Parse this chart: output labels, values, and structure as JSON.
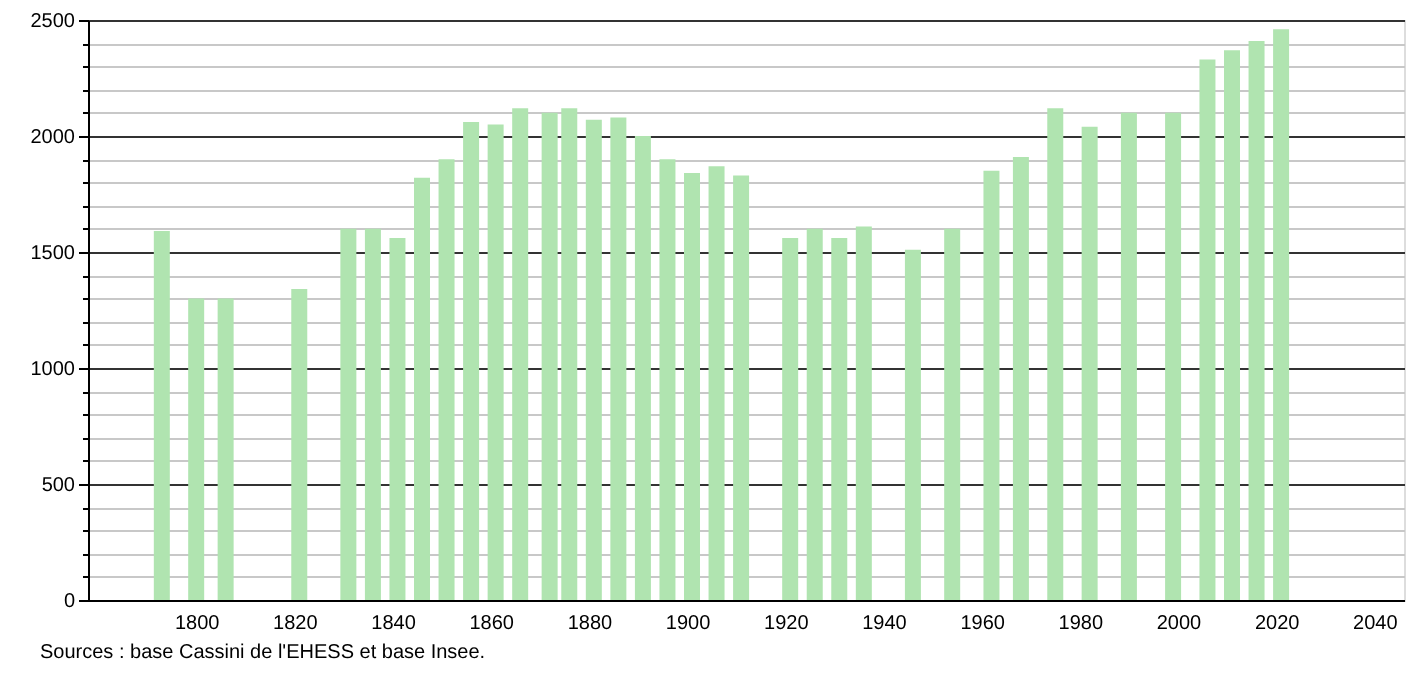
{
  "chart_data": {
    "type": "bar",
    "color": "#b0e4b0",
    "x": [
      1793,
      1800,
      1806,
      1821,
      1831,
      1836,
      1841,
      1846,
      1851,
      1856,
      1861,
      1866,
      1872,
      1876,
      1881,
      1886,
      1891,
      1896,
      1901,
      1906,
      1911,
      1921,
      1926,
      1931,
      1936,
      1946,
      1954,
      1962,
      1968,
      1975,
      1982,
      1990,
      1999,
      2006,
      2011,
      2016,
      2021
    ],
    "values": [
      1590,
      1300,
      1300,
      1340,
      1600,
      1600,
      1560,
      1820,
      1900,
      2060,
      2050,
      2120,
      2100,
      2120,
      2070,
      2080,
      2000,
      1900,
      1840,
      1870,
      1830,
      1560,
      1600,
      1560,
      1610,
      1510,
      1600,
      1850,
      1910,
      2120,
      2040,
      2100,
      2100,
      2330,
      2370,
      2410,
      2460
    ],
    "xlim": [
      1780,
      2044
    ],
    "xticks": [
      1800,
      1820,
      1840,
      1860,
      1880,
      1900,
      1920,
      1940,
      1960,
      1980,
      2000,
      2020,
      2040
    ],
    "ylim": [
      0,
      2500
    ],
    "yticks": [
      0,
      {
        "value": 100,
        "label": null
      },
      {
        "value": 200,
        "label": null
      },
      {
        "value": 300,
        "label": null
      },
      {
        "value": 400,
        "label": null
      },
      500,
      {
        "value": 600,
        "label": null
      },
      {
        "value": 700,
        "label": null
      },
      {
        "value": 800,
        "label": null
      },
      {
        "value": 900,
        "label": null
      },
      1000,
      {
        "value": 1100,
        "label": null
      },
      {
        "value": 1200,
        "label": null
      },
      {
        "value": 1300,
        "label": null
      },
      {
        "value": 1400,
        "label": null
      },
      1500,
      {
        "value": 1600,
        "label": null
      },
      {
        "value": 1700,
        "label": null
      },
      {
        "value": 1800,
        "label": null
      },
      {
        "value": 1900,
        "label": null
      },
      2000,
      {
        "value": 2100,
        "label": null
      },
      {
        "value": 2200,
        "label": null
      },
      {
        "value": 2300,
        "label": null
      },
      {
        "value": 2400,
        "label": null
      },
      2500
    ],
    "grid": "y",
    "annotations": [
      "Sources : base Cassini de l'EHESS et base Insee."
    ]
  }
}
